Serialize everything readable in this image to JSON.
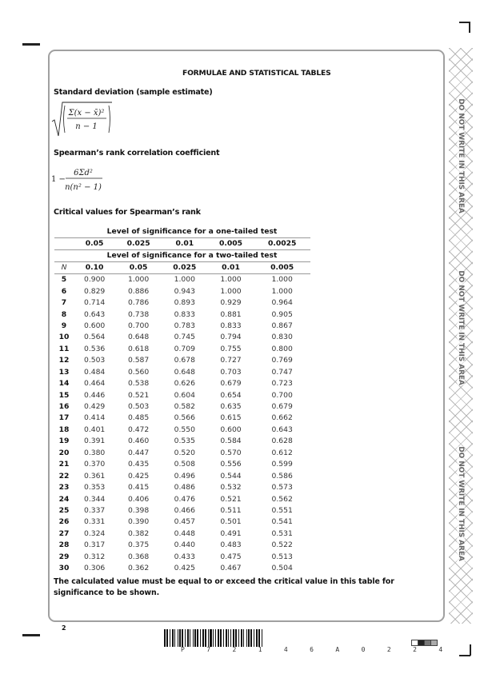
{
  "page": {
    "title": "FORMULAE AND STATISTICAL TABLES",
    "page_number": "2",
    "barcode_text": "P 7 2 1 4 6 A 0 2 2 4",
    "margin_text": "DO NOT WRITE IN THIS AREA"
  },
  "sections": {
    "sd_heading": "Standard deviation (sample estimate)",
    "sd_formula": {
      "numerator": "Σ(x − x̄)²",
      "denominator": "n − 1"
    },
    "spearman_heading": "Spearman’s rank correlation coefficient",
    "spearman_formula": {
      "lead": "1 −",
      "numerator": "6Σd²",
      "denominator": "n(n² − 1)"
    },
    "critical_heading": "Critical values for Spearman’s rank"
  },
  "table": {
    "one_tailed_label": "Level of significance for a one-tailed test",
    "one_tailed_levels": [
      "0.05",
      "0.025",
      "0.01",
      "0.005",
      "0.0025"
    ],
    "two_tailed_label": "Level of significance for a two-tailed test",
    "n_label": "N",
    "two_tailed_levels": [
      "0.10",
      "0.05",
      "0.025",
      "0.01",
      "0.005"
    ],
    "rows": [
      [
        "5",
        "0.900",
        "1.000",
        "1.000",
        "1.000",
        "1.000"
      ],
      [
        "6",
        "0.829",
        "0.886",
        "0.943",
        "1.000",
        "1.000"
      ],
      [
        "7",
        "0.714",
        "0.786",
        "0.893",
        "0.929",
        "0.964"
      ],
      [
        "8",
        "0.643",
        "0.738",
        "0.833",
        "0.881",
        "0.905"
      ],
      [
        "9",
        "0.600",
        "0.700",
        "0.783",
        "0.833",
        "0.867"
      ],
      [
        "10",
        "0.564",
        "0.648",
        "0.745",
        "0.794",
        "0.830"
      ],
      [
        "11",
        "0.536",
        "0.618",
        "0.709",
        "0.755",
        "0.800"
      ],
      [
        "12",
        "0.503",
        "0.587",
        "0.678",
        "0.727",
        "0.769"
      ],
      [
        "13",
        "0.484",
        "0.560",
        "0.648",
        "0.703",
        "0.747"
      ],
      [
        "14",
        "0.464",
        "0.538",
        "0.626",
        "0.679",
        "0.723"
      ],
      [
        "15",
        "0.446",
        "0.521",
        "0.604",
        "0.654",
        "0.700"
      ],
      [
        "16",
        "0.429",
        "0.503",
        "0.582",
        "0.635",
        "0.679"
      ],
      [
        "17",
        "0.414",
        "0.485",
        "0.566",
        "0.615",
        "0.662"
      ],
      [
        "18",
        "0.401",
        "0.472",
        "0.550",
        "0.600",
        "0.643"
      ],
      [
        "19",
        "0.391",
        "0.460",
        "0.535",
        "0.584",
        "0.628"
      ],
      [
        "20",
        "0.380",
        "0.447",
        "0.520",
        "0.570",
        "0.612"
      ],
      [
        "21",
        "0.370",
        "0.435",
        "0.508",
        "0.556",
        "0.599"
      ],
      [
        "22",
        "0.361",
        "0.425",
        "0.496",
        "0.544",
        "0.586"
      ],
      [
        "23",
        "0.353",
        "0.415",
        "0.486",
        "0.532",
        "0.573"
      ],
      [
        "24",
        "0.344",
        "0.406",
        "0.476",
        "0.521",
        "0.562"
      ],
      [
        "25",
        "0.337",
        "0.398",
        "0.466",
        "0.511",
        "0.551"
      ],
      [
        "26",
        "0.331",
        "0.390",
        "0.457",
        "0.501",
        "0.541"
      ],
      [
        "27",
        "0.324",
        "0.382",
        "0.448",
        "0.491",
        "0.531"
      ],
      [
        "28",
        "0.317",
        "0.375",
        "0.440",
        "0.483",
        "0.522"
      ],
      [
        "29",
        "0.312",
        "0.368",
        "0.433",
        "0.475",
        "0.513"
      ],
      [
        "30",
        "0.306",
        "0.362",
        "0.425",
        "0.467",
        "0.504"
      ]
    ]
  },
  "note": "The calculated value must be equal to or exceed the critical value in this table for significance to be shown.",
  "colors": {
    "frame": "#a0a0a0",
    "squares": [
      "#ffffff",
      "#222222",
      "#777777",
      "#aaaaaa"
    ]
  }
}
